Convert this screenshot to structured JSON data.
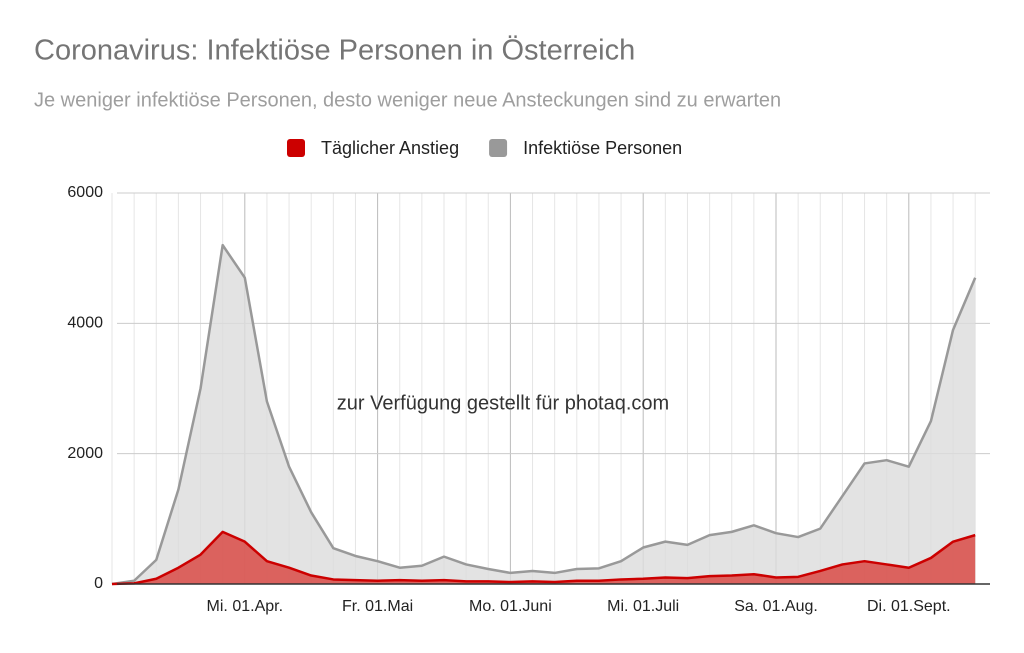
{
  "chart_data": {
    "type": "area",
    "title": "Coronavirus: Infektiöse Personen in Österreich",
    "subtitle": "Je weniger infektiöse Personen, desto weniger neue Ansteckungen sind zu erwarten",
    "annotation": "zur Verfügung gestellt für photaq.com",
    "categories": [
      null,
      null,
      null,
      null,
      null,
      null,
      "Mi. 01.Apr.",
      null,
      null,
      null,
      null,
      null,
      "Fr. 01.Mai",
      null,
      null,
      null,
      null,
      null,
      "Mo. 01.Juni",
      null,
      null,
      null,
      null,
      null,
      "Mi. 01.Juli",
      null,
      null,
      null,
      null,
      null,
      "Sa. 01.Aug.",
      null,
      null,
      null,
      null,
      null,
      "Di. 01.Sept.",
      null,
      null,
      null
    ],
    "series": [
      {
        "name": "Täglicher Anstieg",
        "color": "#cc0000",
        "fill": "#d9534f",
        "values": [
          0,
          10,
          80,
          250,
          450,
          800,
          650,
          350,
          250,
          130,
          70,
          60,
          50,
          60,
          50,
          60,
          40,
          40,
          30,
          40,
          30,
          50,
          50,
          70,
          80,
          100,
          90,
          120,
          130,
          150,
          100,
          110,
          200,
          300,
          350,
          300,
          250,
          400,
          650,
          750
        ]
      },
      {
        "name": "Infektiöse Personen",
        "color": "#999999",
        "fill": "#dcdcdc",
        "values": [
          0,
          50,
          370,
          1450,
          3000,
          5200,
          4700,
          2800,
          1800,
          1100,
          550,
          430,
          350,
          250,
          280,
          420,
          300,
          230,
          170,
          200,
          170,
          230,
          240,
          350,
          560,
          650,
          600,
          750,
          800,
          900,
          780,
          720,
          850,
          1350,
          1850,
          1900,
          1800,
          2500,
          3900,
          4700
        ]
      }
    ],
    "ylim": [
      0,
      6000
    ],
    "yticks": [
      0,
      2000,
      4000,
      6000
    ],
    "grid": true,
    "legend": "top"
  }
}
